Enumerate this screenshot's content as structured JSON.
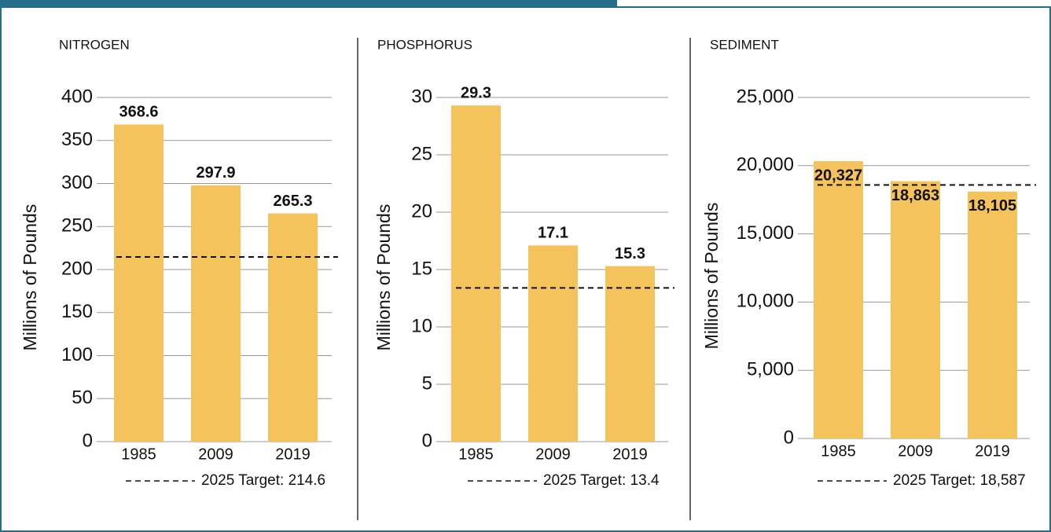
{
  "chart_data": [
    {
      "type": "bar",
      "title": "NITROGEN",
      "y_label": "Millions of Pounds",
      "categories": [
        "1985",
        "2009",
        "2019"
      ],
      "values": [
        368.6,
        297.9,
        265.3
      ],
      "color": "#f5c35c",
      "ylim": [
        0,
        400
      ],
      "yticks": [
        0,
        50,
        100,
        150,
        200,
        250,
        300,
        350,
        400
      ],
      "grid": true,
      "target": 214.6,
      "target_label": "2025 Target: 214.6",
      "label_position": "above"
    },
    {
      "type": "bar",
      "title": "PHOSPHORUS",
      "y_label": "Millions of Pounds",
      "categories": [
        "1985",
        "2009",
        "2019"
      ],
      "values": [
        29.3,
        17.1,
        15.3
      ],
      "color": "#f5c35c",
      "ylim": [
        0,
        30
      ],
      "yticks": [
        0,
        5,
        10,
        15,
        20,
        25,
        30
      ],
      "grid": true,
      "target": 13.4,
      "target_label": "2025 Target: 13.4",
      "label_position": "above"
    },
    {
      "type": "bar",
      "title": "SEDIMENT",
      "y_label": "Millions of Pounds",
      "categories": [
        "1985",
        "2009",
        "2019"
      ],
      "values": [
        20327,
        18863,
        18105
      ],
      "value_labels": [
        "20,327",
        "18,863",
        "18,105"
      ],
      "color": "#f5c35c",
      "ylim": [
        0,
        25000
      ],
      "yticks": [
        0,
        {
          "value": 5000,
          "label": "5,000"
        },
        {
          "value": 10000,
          "label": "10,000"
        },
        {
          "value": 15000,
          "label": "15,000"
        },
        {
          "value": 20000,
          "label": "20,000"
        },
        {
          "value": 25000,
          "label": "25,000"
        }
      ],
      "grid": true,
      "target": 18587,
      "target_label": "2025 Target: 18,587",
      "label_position": "inside"
    }
  ]
}
